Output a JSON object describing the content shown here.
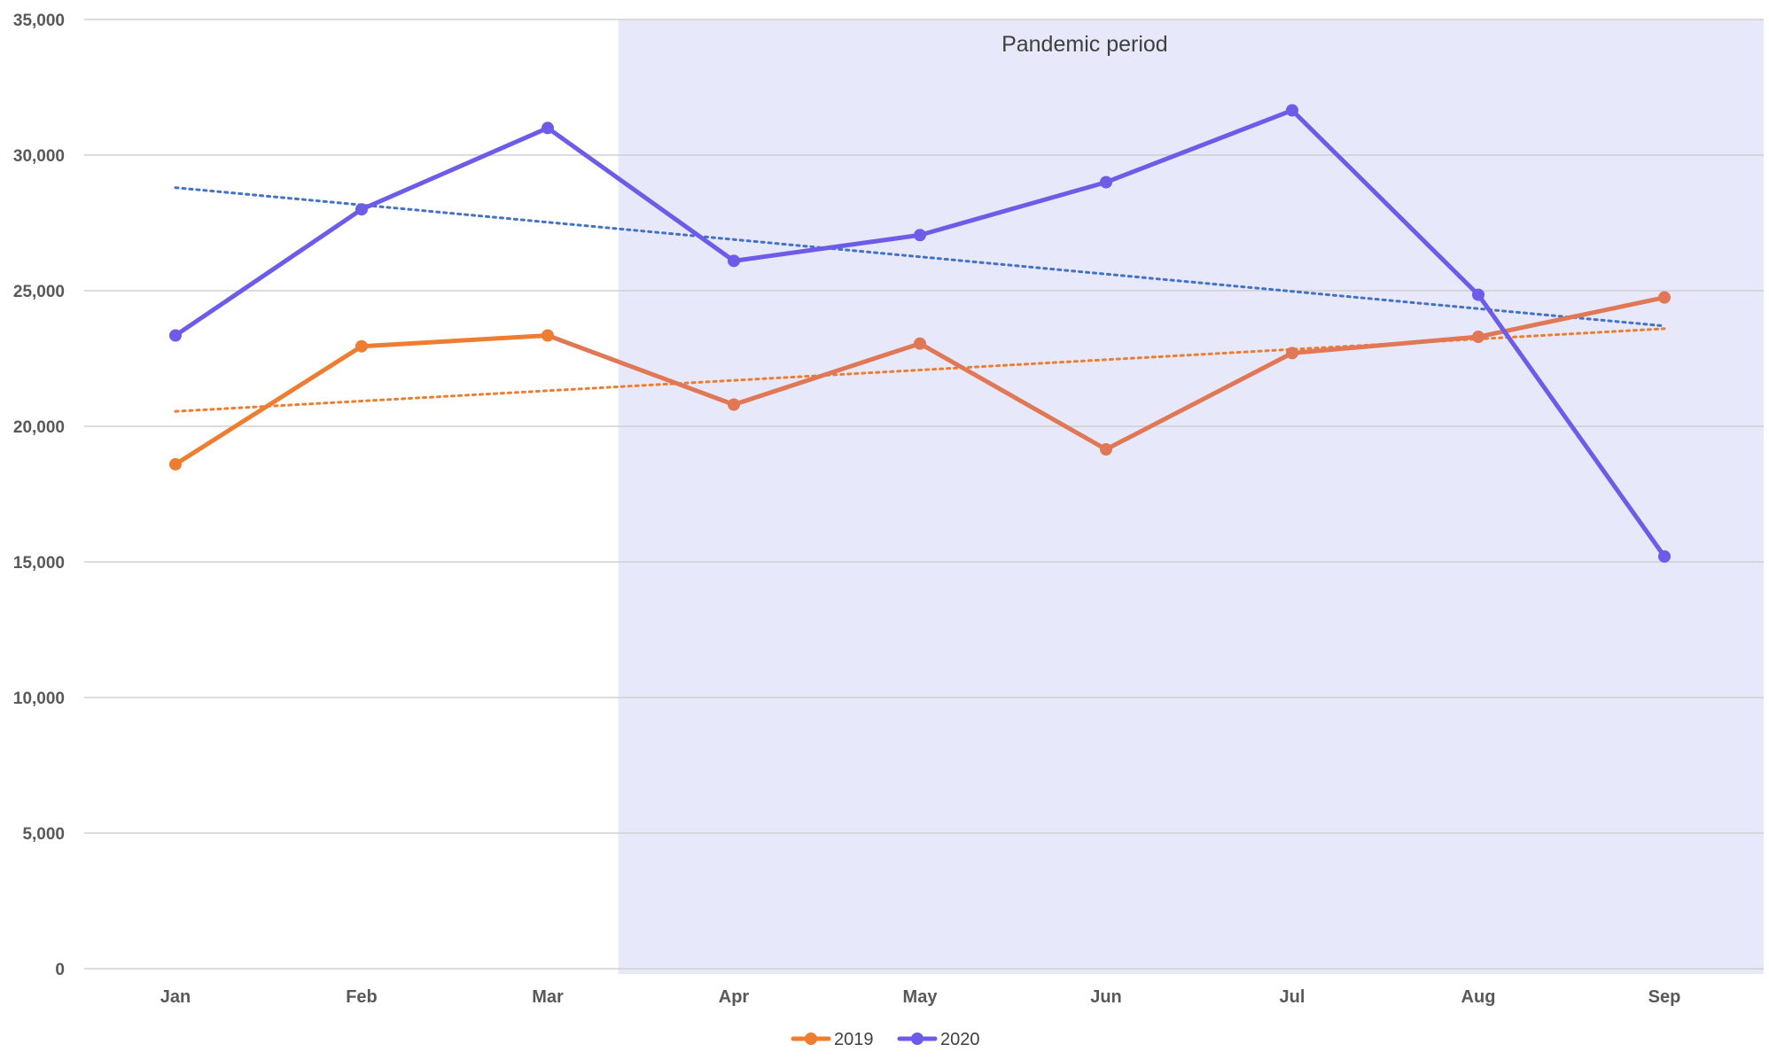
{
  "chart_data": {
    "type": "line",
    "categories": [
      "Jan",
      "Feb",
      "Mar",
      "Apr",
      "May",
      "Jun",
      "Jul",
      "Aug",
      "Sep"
    ],
    "ylim": [
      0,
      35000
    ],
    "yticks": [
      0,
      5000,
      10000,
      15000,
      20000,
      25000,
      30000,
      35000
    ],
    "ytick_labels": [
      "0",
      "5,000",
      "10,000",
      "15,000",
      "20,000",
      "25,000",
      "30,000",
      "35,000"
    ],
    "grid": true,
    "legend_position": "bottom",
    "series": [
      {
        "name": "2019",
        "color": "#ed7d31",
        "color_later": "#e07755",
        "values": [
          18600,
          22950,
          23350,
          20800,
          23050,
          19150,
          22700,
          23300,
          24750
        ],
        "trendline": {
          "style": "dotted",
          "start": 20550,
          "end": 23600
        }
      },
      {
        "name": "2020",
        "color": "#6c5ce7",
        "values": [
          23350,
          28000,
          31000,
          26100,
          27050,
          29000,
          31650,
          24850,
          15200
        ],
        "trendline": {
          "style": "dotted",
          "color": "#4472c4",
          "start": 28800,
          "end": 23700
        }
      }
    ],
    "annotations": [
      {
        "text": "Pandemic period",
        "region_start": "Apr",
        "region_end": "Sep",
        "region_color": "#e8e8fb"
      }
    ]
  }
}
